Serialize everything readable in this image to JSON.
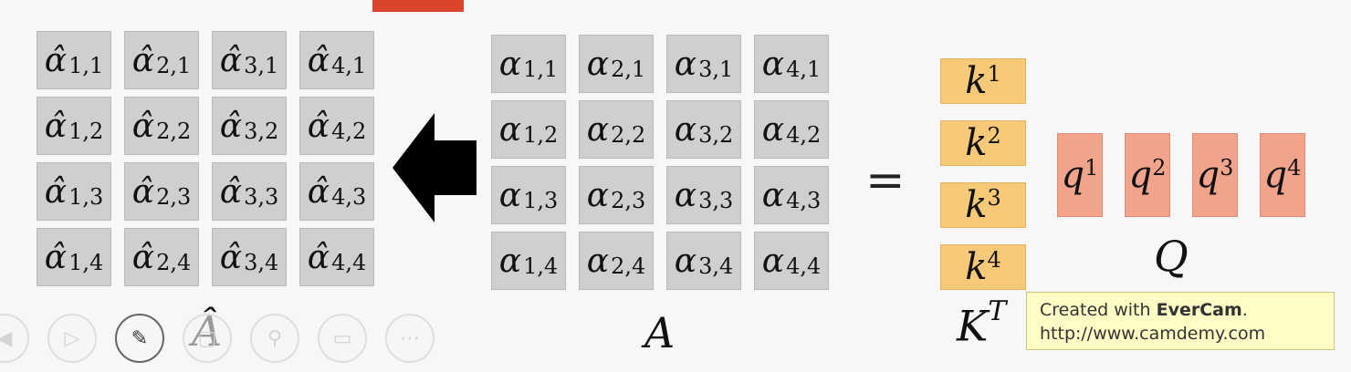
{
  "a_hat": {
    "symbol": "α̂",
    "label": "Â",
    "cells": [
      [
        "1,1",
        "2,1",
        "3,1",
        "4,1"
      ],
      [
        "1,2",
        "2,2",
        "3,2",
        "4,2"
      ],
      [
        "1,3",
        "2,3",
        "3,3",
        "4,3"
      ],
      [
        "1,4",
        "2,4",
        "3,4",
        "4,4"
      ]
    ]
  },
  "a_matrix": {
    "symbol": "α",
    "label": "A",
    "cells": [
      [
        "1,1",
        "2,1",
        "3,1",
        "4,1"
      ],
      [
        "1,2",
        "2,2",
        "3,2",
        "4,2"
      ],
      [
        "1,3",
        "2,3",
        "3,3",
        "4,3"
      ],
      [
        "1,4",
        "2,4",
        "3,4",
        "4,4"
      ]
    ]
  },
  "equals": "=",
  "k_matrix": {
    "symbol": "k",
    "label": "K",
    "label_sup": "T",
    "entries": [
      "1",
      "2",
      "3",
      "4"
    ],
    "color": "#f6c979"
  },
  "q_matrix": {
    "symbol": "q",
    "label": "Q",
    "entries": [
      "1",
      "2",
      "3",
      "4"
    ],
    "color": "#f2a38c"
  },
  "toolbar": {
    "icons": [
      "back-icon",
      "play-icon",
      "pen-icon",
      "eraser-icon",
      "zoom-icon",
      "screen-icon",
      "more-icon"
    ],
    "active": "pen-icon"
  },
  "watermark": {
    "prefix": "Created with ",
    "brand": "EverCam",
    "suffix": ".",
    "url": "http://www.camdemy.com"
  }
}
